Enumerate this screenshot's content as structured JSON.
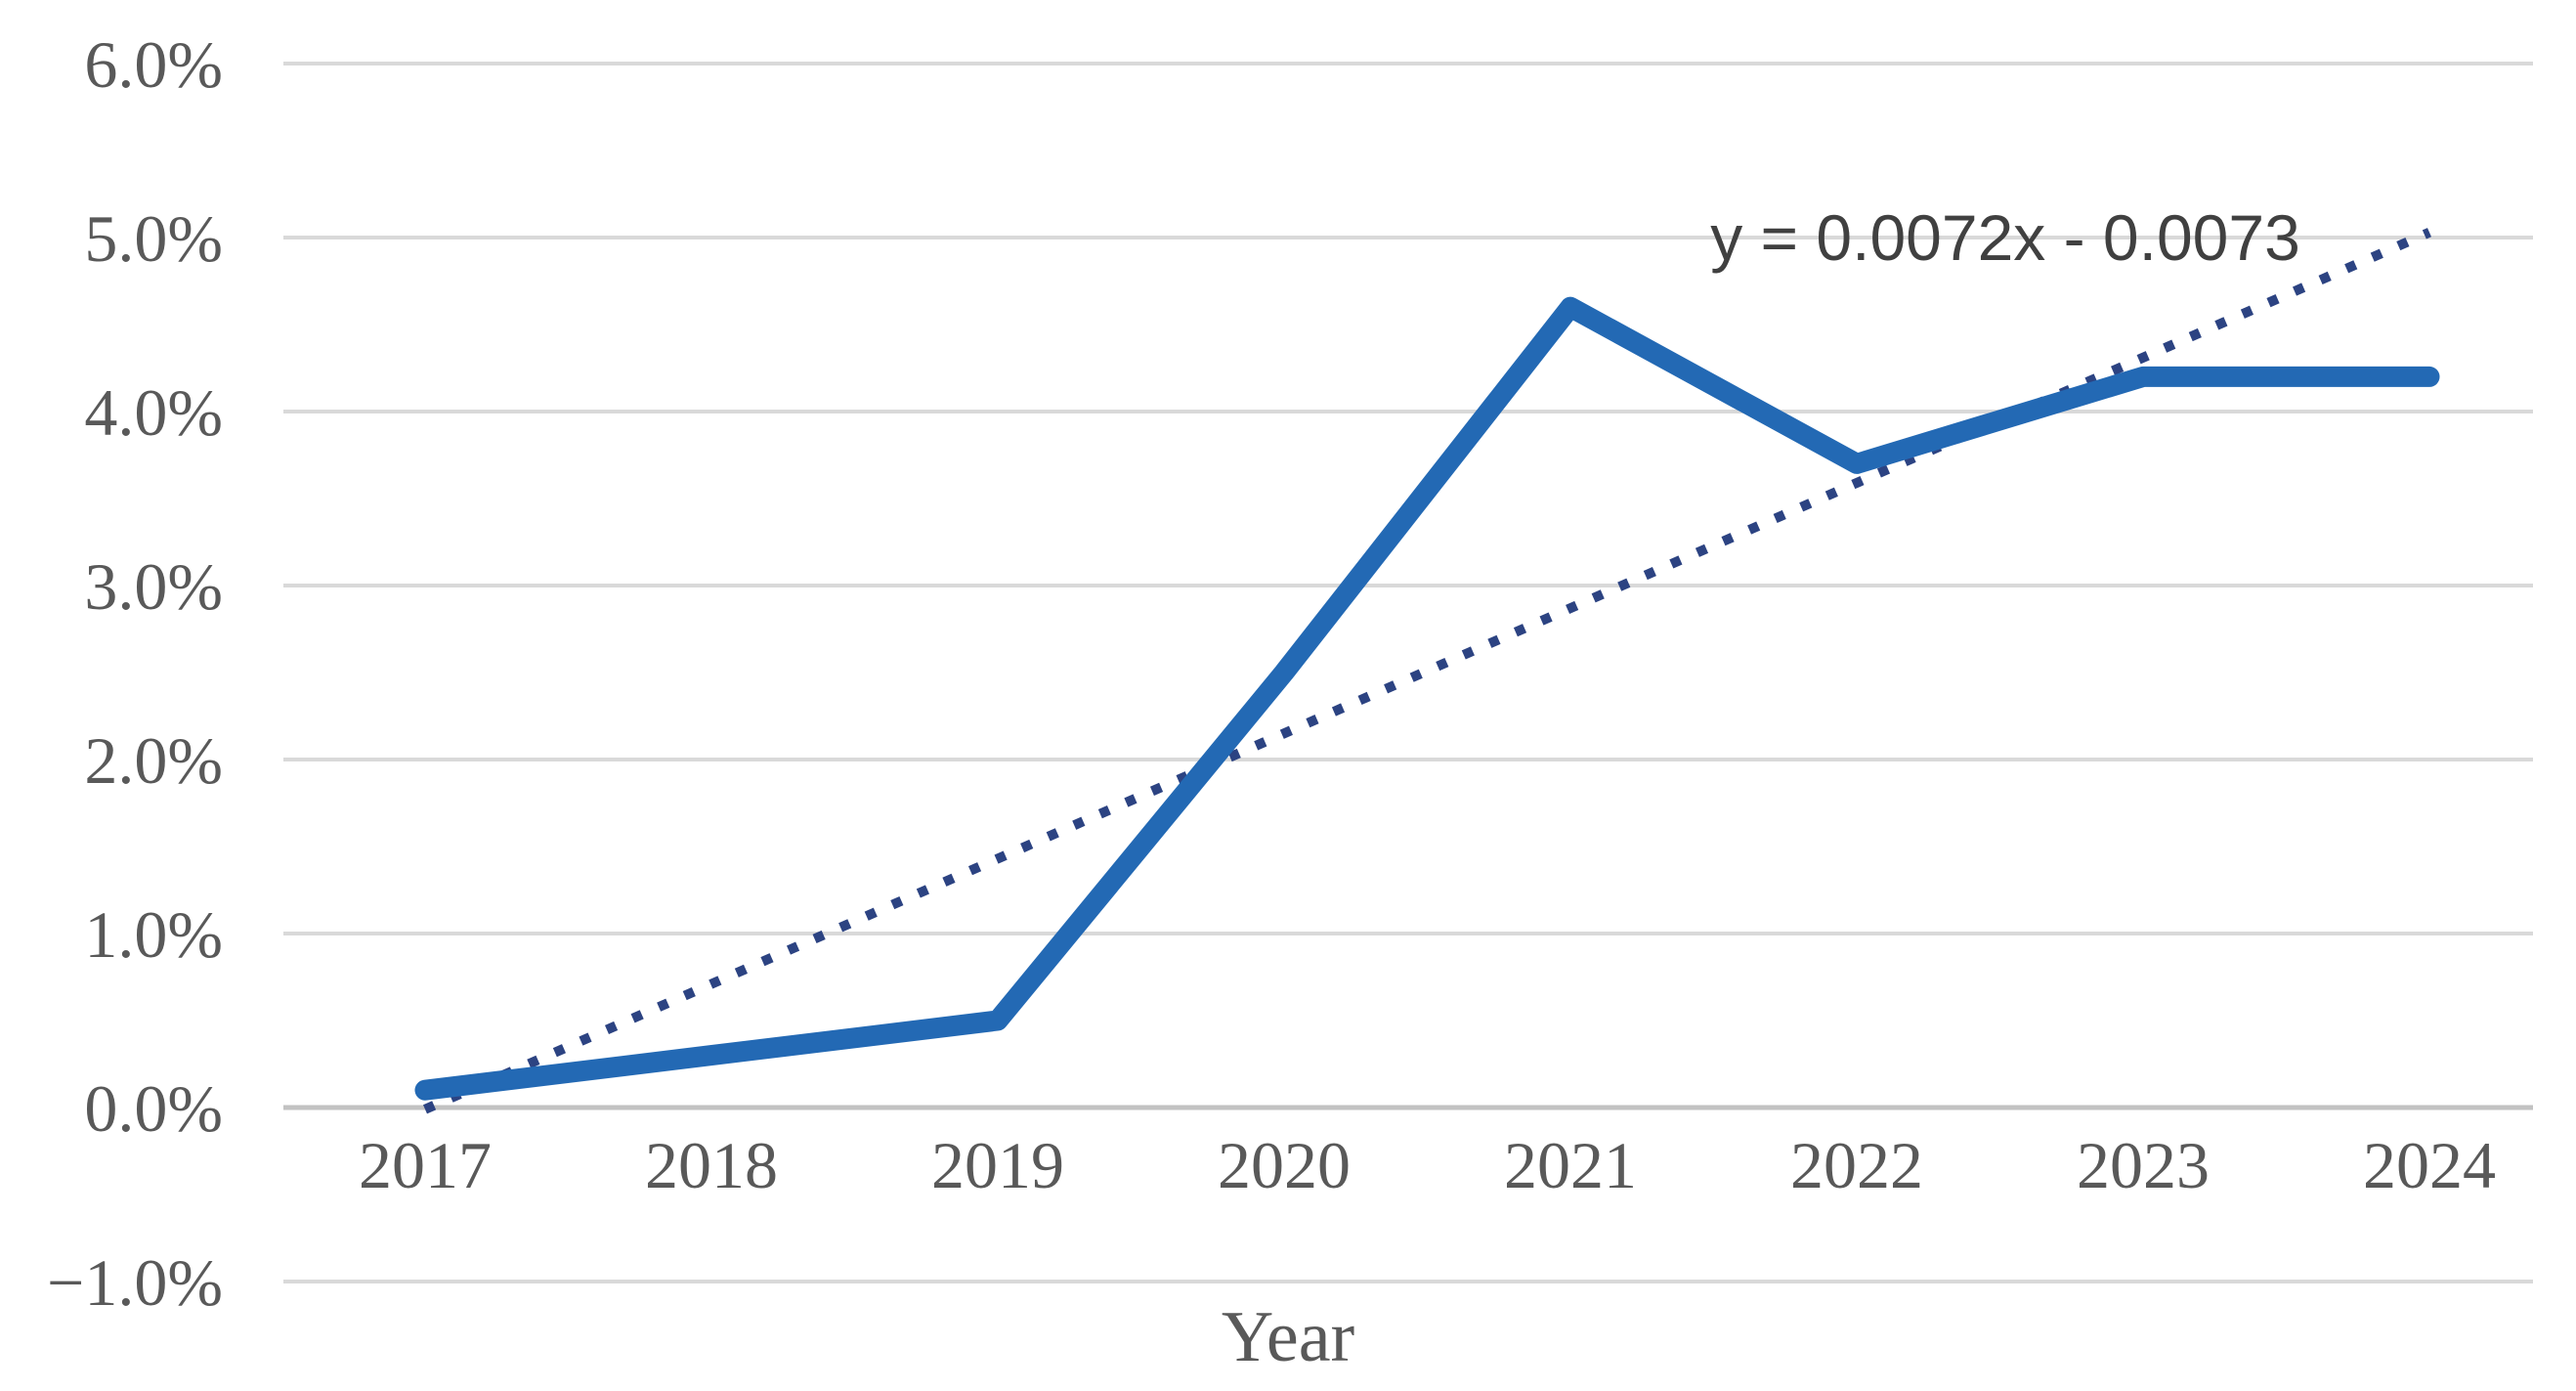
{
  "chart_data": {
    "type": "line",
    "title": "",
    "xlabel": "Year",
    "ylabel": "",
    "categories": [
      "2017",
      "2018",
      "2019",
      "2020",
      "2021",
      "2022",
      "2023",
      "2024"
    ],
    "series": [
      {
        "values": [
          0.1,
          0.3,
          0.5,
          2.5,
          4.6,
          3.7,
          4.2,
          4.2
        ],
        "unit": "%",
        "color": "#2369B4",
        "style": "solid"
      }
    ],
    "trendline": {
      "equation_label": "y = 0.0072x - 0.0073",
      "slope": 0.0072,
      "intercept": -0.0073,
      "color": "#2C4382",
      "style": "dotted",
      "x_start_index": 1,
      "x_end_index": 8
    },
    "y_axis": {
      "min": -1.0,
      "max": 6.0,
      "step": 1.0,
      "tick_labels": [
        "6.0%",
        "5.0%",
        "4.0%",
        "3.0%",
        "2.0%",
        "1.0%",
        "0.0%",
        "−1.0%"
      ]
    },
    "x_axis": {
      "tick_labels": [
        "2017",
        "2018",
        "2019",
        "2020",
        "2021",
        "2022",
        "2023",
        "2024"
      ],
      "title": "Year"
    },
    "grid": true,
    "legend": "none",
    "colors": {
      "gridline": "#D9D9D9",
      "axis_line": "#C2C2C2",
      "tick_text": "#595959",
      "equation_text": "#404040",
      "background": "#FFFFFF"
    }
  }
}
